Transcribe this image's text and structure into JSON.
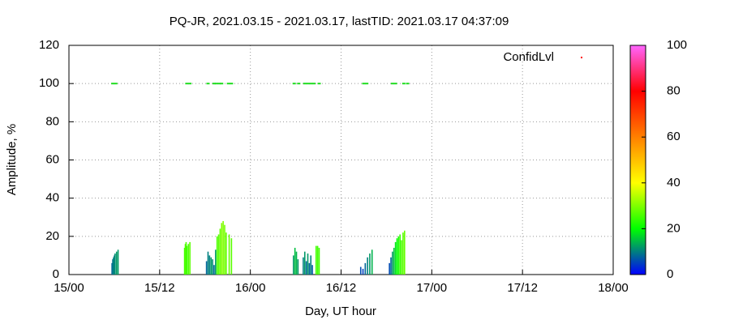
{
  "chart_data": {
    "type": "bar",
    "title": "PQ-JR, 2021.03.15 - 2021.03.17, lastTID: 2021.03.17 04:37:09",
    "x_label": "Day, UT hour",
    "y_label": "Amplitude, %",
    "xlim": [
      0,
      72
    ],
    "xticks": [
      {
        "value": 0,
        "label": "15/00"
      },
      {
        "value": 12,
        "label": "15/12"
      },
      {
        "value": 24,
        "label": "16/00"
      },
      {
        "value": 36,
        "label": "16/12"
      },
      {
        "value": 48,
        "label": "17/00"
      },
      {
        "value": 60,
        "label": "17/12"
      },
      {
        "value": 72,
        "label": "18/00"
      }
    ],
    "ylim": [
      0,
      120
    ],
    "yticks": [
      0,
      20,
      40,
      60,
      80,
      100,
      120
    ],
    "grid": true,
    "cblim": [
      0,
      100
    ],
    "cbticks": [
      0,
      20,
      40,
      60,
      80,
      100
    ],
    "palette": [
      "#0000ff",
      "#00ff00",
      "#ffff00",
      "#ff8000",
      "#ff0000",
      "#ff66ff"
    ],
    "bars": {
      "x": [
        5.7,
        5.8,
        5.9,
        6.0,
        6.1,
        6.3,
        6.5,
        15.3,
        15.4,
        15.5,
        15.6,
        15.8,
        16.0,
        18.2,
        18.4,
        18.6,
        18.8,
        19.0,
        19.2,
        19.4,
        19.6,
        19.8,
        20.0,
        20.2,
        20.4,
        20.6,
        20.8,
        21.2,
        21.5,
        29.7,
        29.9,
        30.1,
        30.3,
        31.0,
        31.2,
        31.4,
        31.6,
        31.8,
        32.0,
        32.2,
        32.7,
        32.9,
        33.1,
        38.6,
        38.9,
        39.2,
        39.5,
        39.8,
        40.1,
        42.4,
        42.6,
        42.8,
        43.0,
        43.2,
        43.4,
        43.6,
        43.8,
        44.0,
        44.2,
        44.4
      ],
      "values": [
        6,
        8,
        9,
        10,
        11,
        12,
        13,
        14,
        16,
        17,
        15,
        16,
        17,
        7,
        12,
        10,
        9,
        8,
        5,
        13,
        20,
        21,
        24,
        27,
        28,
        26,
        22,
        21,
        19,
        10,
        14,
        12,
        8,
        9,
        12,
        7,
        11,
        6,
        10,
        5,
        15,
        15,
        14,
        4,
        3,
        6,
        9,
        11,
        13,
        6,
        9,
        12,
        14,
        17,
        19,
        20,
        21,
        18,
        22,
        23
      ],
      "conf": [
        8,
        9,
        10,
        10,
        11,
        12,
        12,
        25,
        26,
        26,
        25,
        26,
        27,
        8,
        10,
        10,
        12,
        11,
        8,
        12,
        26,
        27,
        28,
        30,
        30,
        29,
        28,
        28,
        27,
        12,
        15,
        14,
        12,
        10,
        12,
        8,
        12,
        8,
        10,
        7,
        25,
        25,
        25,
        6,
        5,
        8,
        10,
        12,
        14,
        6,
        8,
        12,
        15,
        18,
        20,
        22,
        24,
        26,
        27,
        28
      ]
    },
    "points": {
      "name": "ConfidLvl",
      "color": "#22dd22",
      "legend_color": "#ff0000",
      "x": [
        5.8,
        6.2,
        15.6,
        16.0,
        18.4,
        19.2,
        19.5,
        19.9,
        20.2,
        21.1,
        21.5,
        29.8,
        30.4,
        31.2,
        31.6,
        32.0,
        32.4,
        33.1,
        39.0,
        39.4,
        42.8,
        43.2,
        44.3,
        44.8
      ],
      "values": [
        100,
        100,
        100,
        100,
        100,
        100,
        100,
        100,
        100,
        100,
        100,
        100,
        100,
        100,
        100,
        100,
        100,
        100,
        100,
        100,
        100,
        100,
        100,
        100
      ]
    }
  }
}
